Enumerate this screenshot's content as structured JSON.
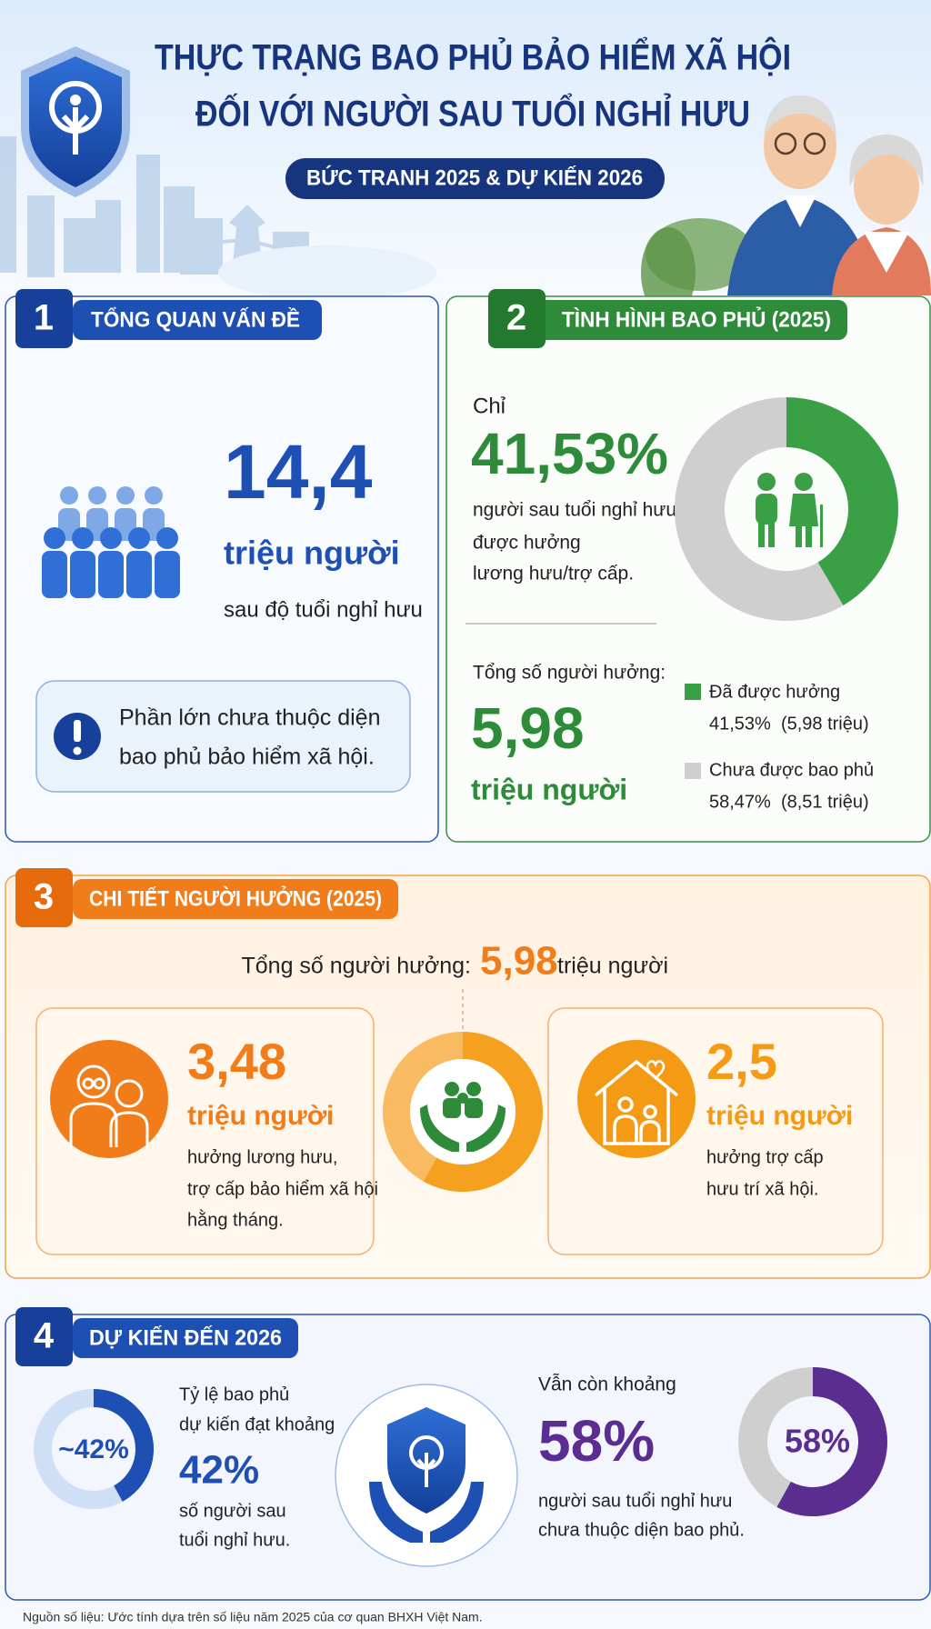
{
  "header": {
    "title_lines": [
      "THỰC TRẠNG BAO PHỦ BẢO HIỂM XÃ HỘI",
      "ĐỐI VỚI NGƯỜI SAU TUỔI NGHỈ HƯU"
    ],
    "subtitle": "BỨC TRANH 2025 & DỰ KIẾN 2026"
  },
  "section1": {
    "number": "1",
    "title": "TỔNG QUAN VẤN ĐỀ",
    "value": "14,4",
    "unit": "triệu người",
    "caption": "sau độ tuổi nghỉ hưu",
    "note_lines": [
      "Phần lớn chưa thuộc diện",
      "bao phủ bảo hiểm xã hội."
    ]
  },
  "section2": {
    "number": "2",
    "title": "TÌNH HÌNH BAO PHỦ (2025)",
    "prefix": "Chỉ",
    "rate": "41,53%",
    "description_lines": [
      "người sau tuổi nghỉ hưu",
      "được hưởng",
      "lương hưu/trợ cấp."
    ],
    "total_label": "Tổng số người hưởng:",
    "total_value": "5,98",
    "total_unit": "triệu người",
    "donut": {
      "values": [
        41.53,
        58.47
      ],
      "colors": [
        "#3aa045",
        "#cfcfcf"
      ]
    },
    "legend": [
      {
        "name": "Đã được hưởng",
        "detail": "41,53%  (5,98 triệu)"
      },
      {
        "name": "Chưa được bao phủ",
        "detail": "58,47%  (8,51 triệu)"
      }
    ]
  },
  "section3": {
    "number": "3",
    "title": "CHI TIẾT NGƯỜI HƯỞNG (2025)",
    "total_label": "Tổng số người hưởng:",
    "total_value": "5,98",
    "total_unit": "triệu người",
    "donut": {
      "values": [
        3.48,
        2.5
      ],
      "colors": [
        "#f5a01e",
        "#f8bb62"
      ]
    },
    "cards": [
      {
        "value": "3,48",
        "unit": "triệu người",
        "lines": [
          "hưởng lương hưu,",
          "trợ cấp bảo hiểm xã hội",
          "hằng tháng."
        ]
      },
      {
        "value": "2,5",
        "unit": "triệu người",
        "lines": [
          "hưởng trợ cấp",
          "hưu trí xã hội."
        ]
      }
    ]
  },
  "section4": {
    "number": "4",
    "title": "DỰ KIẾN ĐẾN 2026",
    "forecast": {
      "donut_value": 42,
      "donut_label": "~42%",
      "color": "#1e50b4",
      "lines_before": [
        "Tỷ lệ bao phủ",
        "dự kiến đạt khoảng"
      ],
      "value": "42%",
      "lines_after": [
        "số người sau",
        "tuổi nghỉ hưu."
      ]
    },
    "remaining": {
      "donut_value": 58,
      "donut_label": "58%",
      "color": "#5b2d91",
      "prefix": "Vẫn còn khoảng",
      "value": "58%",
      "lines": [
        "người sau tuổi nghỉ hưu",
        "chưa thuộc diện bao phủ."
      ]
    }
  },
  "source": "Nguồn số liệu: Ước tính dựa trên số liệu năm 2025 của cơ quan BHXH Việt Nam."
}
